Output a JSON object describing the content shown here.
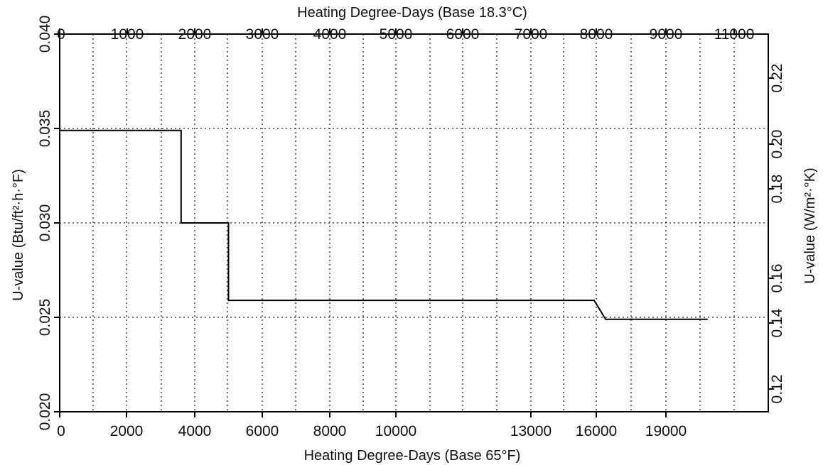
{
  "chart_data": {
    "type": "line",
    "top_axis_label": "Heating Degree-Days (Base 18.3°C)",
    "xlabel": "Heating Degree-Days (Base 65°F)",
    "ylabel_left": "U-value  (Btu/ft²·h·°F)",
    "ylabel_right": "U-value  (W/m²·°K)",
    "bottom_ticks": [
      "0",
      "2000",
      "4000",
      "6000",
      "8000",
      "10000",
      "13000",
      "16000",
      "19000"
    ],
    "top_ticks": [
      "0",
      "1000",
      "2000",
      "3000",
      "4000",
      "5000",
      "6000",
      "7000",
      "8000",
      "9000",
      "11000"
    ],
    "left_ticks": [
      "0.020",
      "0.025",
      "0.030",
      "0.035",
      "0.040"
    ],
    "right_ticks": [
      "0.12",
      "0.14",
      "0.16",
      "0.18",
      "0.20",
      "0.22"
    ],
    "ylim": [
      0.02,
      0.04
    ],
    "grid": true,
    "series": [
      {
        "x": [
          0,
          3600,
          3600,
          5000,
          5000,
          15900,
          16400,
          20800
        ],
        "y": [
          0.0349,
          0.0349,
          0.03,
          0.03,
          0.0259,
          0.0259,
          0.0249,
          0.0249
        ]
      }
    ]
  }
}
